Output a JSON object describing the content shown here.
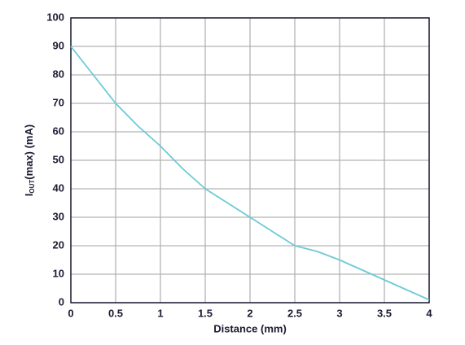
{
  "chart_data": {
    "type": "line",
    "x_label": "Distance (mm)",
    "y_label": {
      "main": "I",
      "sub": "OUT",
      "rest": "(max) (mA)"
    },
    "x": [
      0,
      0.25,
      0.5,
      0.75,
      1,
      1.25,
      1.5,
      1.75,
      2,
      2.25,
      2.5,
      2.75,
      3,
      3.25,
      3.5,
      3.75,
      4
    ],
    "series": [
      {
        "color": "#6ccad8",
        "values": [
          90,
          80,
          70,
          62,
          55,
          47,
          40,
          35,
          30,
          25,
          20,
          18,
          15,
          11.5,
          8,
          4.5,
          1
        ]
      }
    ],
    "xlim": [
      0,
      4
    ],
    "xticks": [
      0,
      0.5,
      1,
      1.5,
      2,
      2.5,
      3,
      3.5,
      4
    ],
    "ylim": [
      0,
      100
    ],
    "yticks": [
      0,
      10,
      20,
      30,
      40,
      50,
      60,
      70,
      80,
      90,
      100
    ],
    "grid": true
  }
}
